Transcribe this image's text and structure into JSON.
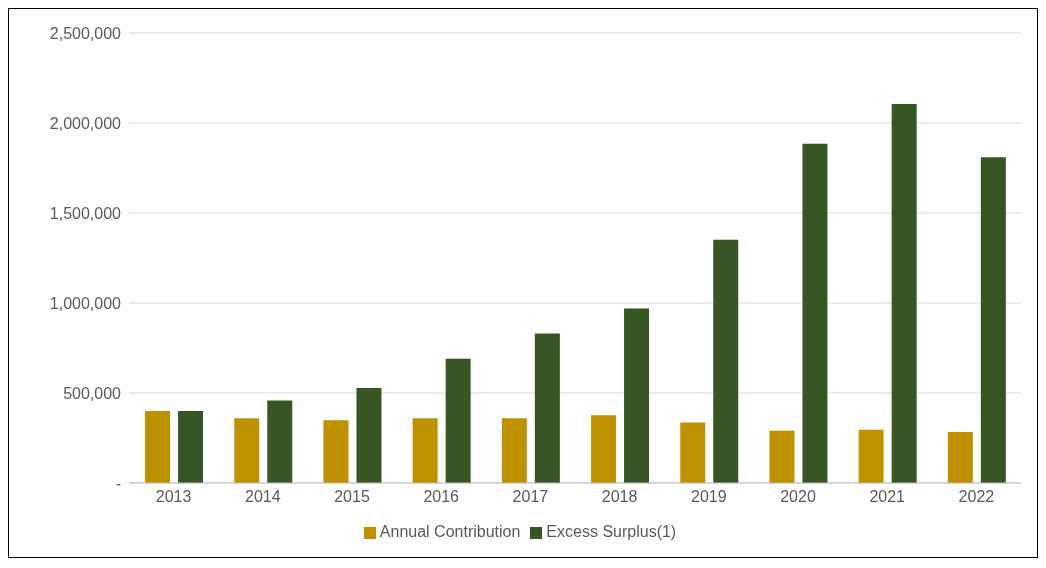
{
  "chart_data": {
    "type": "bar",
    "categories": [
      "2013",
      "2014",
      "2015",
      "2016",
      "2017",
      "2018",
      "2019",
      "2020",
      "2021",
      "2022"
    ],
    "series": [
      {
        "name": "Annual Contribution",
        "color": "#bf9000",
        "values": [
          400000,
          360000,
          348000,
          360000,
          360000,
          377000,
          336000,
          290000,
          296000,
          284000
        ]
      },
      {
        "name": "Excess Surplus(1)",
        "color": "#375623",
        "values": [
          400000,
          458000,
          528000,
          690000,
          830000,
          969000,
          1352000,
          1885000,
          2106000,
          1810000
        ]
      }
    ],
    "ylim": [
      0,
      2500000
    ],
    "yticks": [
      {
        "value": 0,
        "label": "-"
      },
      {
        "value": 500000,
        "label": "500,000"
      },
      {
        "value": 1000000,
        "label": "1,000,000"
      },
      {
        "value": 1500000,
        "label": "1,500,000"
      },
      {
        "value": 2000000,
        "label": "2,000,000"
      },
      {
        "value": 2500000,
        "label": "2,500,000"
      }
    ],
    "grid": "y",
    "legend": "bottom"
  }
}
